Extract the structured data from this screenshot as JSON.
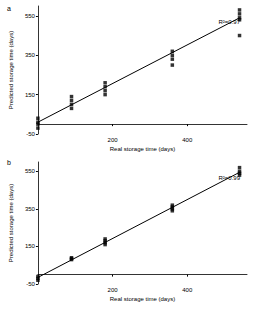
{
  "chart_data": [
    {
      "type": "scatter",
      "title": "a",
      "xlabel": "Real storage time (days)",
      "ylabel": "Predicted storage time (days)",
      "annotation": "R²=0.97",
      "xlim": [
        0,
        560
      ],
      "xticks": [
        200,
        400
      ],
      "ylim": [
        -50,
        600
      ],
      "yticks": [
        -50,
        150,
        350,
        550
      ],
      "series": [
        {
          "type": "scatter",
          "marker": "square",
          "color": "#000000",
          "x": [
            0,
            0,
            0,
            0,
            90,
            90,
            90,
            90,
            180,
            180,
            180,
            180,
            360,
            360,
            360,
            360,
            540,
            540,
            540,
            540,
            540
          ],
          "values": [
            -20,
            0,
            10,
            30,
            80,
            100,
            120,
            140,
            150,
            170,
            190,
            210,
            300,
            330,
            350,
            370,
            450,
            530,
            540,
            560,
            580
          ]
        },
        {
          "type": "line",
          "line_style": "solid",
          "color": "#000000",
          "x": [
            0,
            540
          ],
          "values": [
            10,
            540
          ]
        }
      ]
    },
    {
      "type": "scatter",
      "title": "b",
      "xlabel": "Real storage time (days)",
      "ylabel": "Predicted storage time (days)",
      "annotation": "R²=0.99",
      "xlim": [
        0,
        560
      ],
      "xticks": [
        200,
        400
      ],
      "ylim": [
        -50,
        600
      ],
      "yticks": [
        -50,
        150,
        350,
        550
      ],
      "series": [
        {
          "type": "scatter",
          "marker": "square",
          "color": "#000000",
          "x": [
            0,
            0,
            0,
            90,
            90,
            90,
            180,
            180,
            180,
            180,
            360,
            360,
            360,
            360,
            540,
            540,
            540,
            540
          ],
          "values": [
            -30,
            -20,
            -10,
            80,
            85,
            90,
            160,
            170,
            180,
            190,
            340,
            350,
            360,
            370,
            530,
            540,
            550,
            570
          ]
        },
        {
          "type": "line",
          "line_style": "solid",
          "color": "#000000",
          "x": [
            0,
            540
          ],
          "values": [
            -15,
            545
          ]
        }
      ]
    }
  ]
}
